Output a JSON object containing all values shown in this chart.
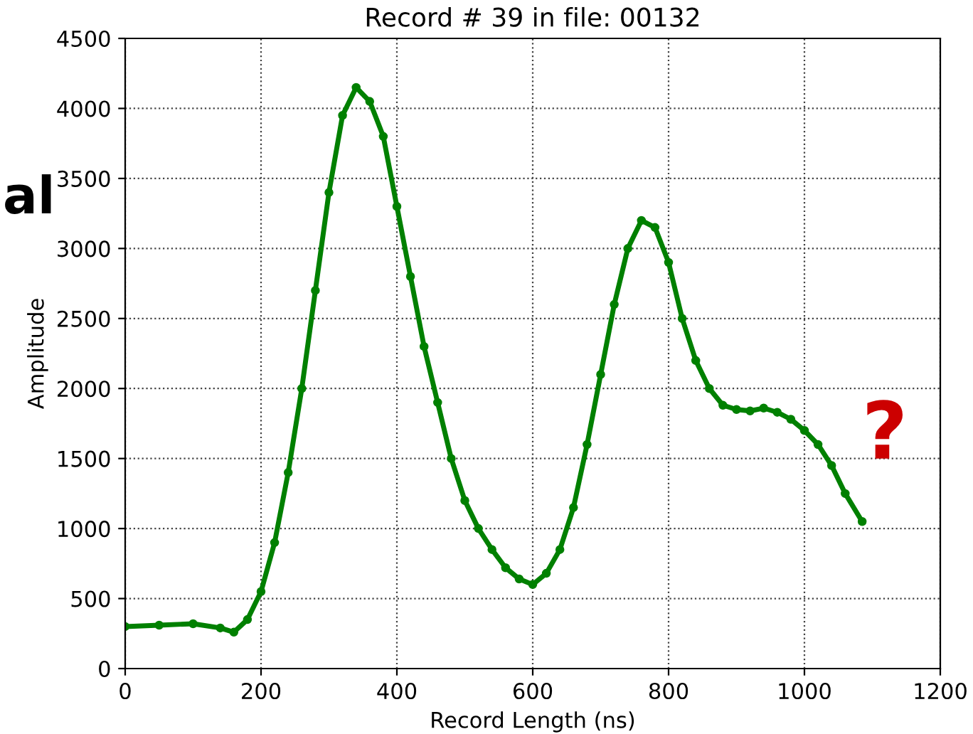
{
  "chart_data": {
    "type": "line",
    "title": "Record # 39 in file: 00132",
    "xlabel": "Record Length (ns)",
    "ylabel": "Amplitude",
    "x": [
      0,
      50,
      100,
      140,
      160,
      180,
      200,
      220,
      240,
      260,
      280,
      300,
      320,
      340,
      360,
      380,
      400,
      420,
      440,
      460,
      480,
      500,
      520,
      540,
      560,
      580,
      600,
      620,
      640,
      660,
      680,
      700,
      720,
      740,
      760,
      780,
      800,
      820,
      840,
      860,
      880,
      900,
      920,
      940,
      960,
      980,
      1000,
      1020,
      1040,
      1060,
      1085
    ],
    "series": [
      {
        "color": "#008000",
        "values": [
          300,
          310,
          320,
          290,
          260,
          350,
          550,
          900,
          1400,
          2000,
          2700,
          3400,
          3950,
          4150,
          4050,
          3800,
          3300,
          2800,
          2300,
          1900,
          1500,
          1200,
          1000,
          850,
          720,
          640,
          600,
          680,
          850,
          1150,
          1600,
          2100,
          2600,
          3000,
          3200,
          3150,
          2900,
          2500,
          2200,
          2000,
          1880,
          1850,
          1840,
          1860,
          1830,
          1780,
          1700,
          1600,
          1450,
          1250,
          1050
        ]
      }
    ],
    "xlim": [
      0,
      1200
    ],
    "xticks": [
      0,
      200,
      400,
      600,
      800,
      1000,
      1200
    ],
    "ylim": [
      0,
      4500
    ],
    "yticks": [
      0,
      500,
      1000,
      1500,
      2000,
      2500,
      3000,
      3500,
      4000,
      4500
    ],
    "grid": true,
    "marker": "circle",
    "line_style": "solid",
    "annotations": [
      "al",
      "?"
    ]
  }
}
